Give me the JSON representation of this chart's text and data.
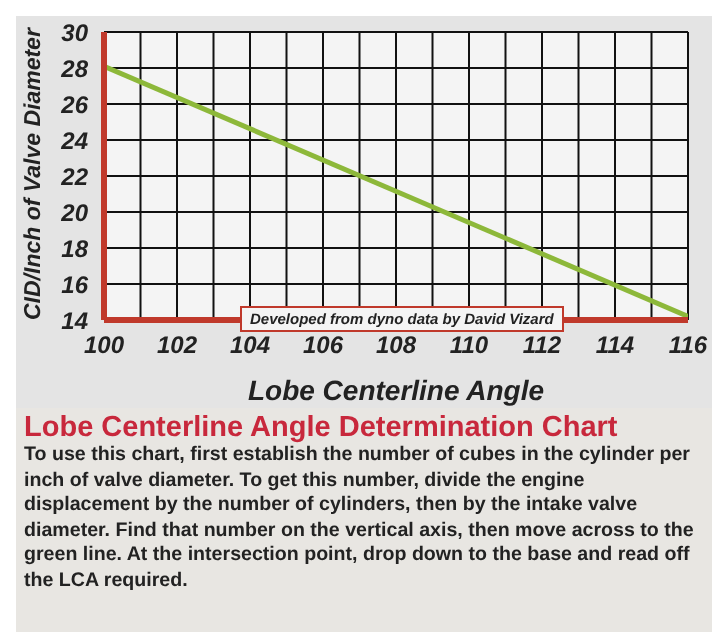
{
  "chart_data": {
    "type": "line",
    "title": "Lobe Centerline Angle Determination Chart",
    "xlabel": "Lobe Centerline Angle",
    "ylabel": "CID/Inch of Valve Diameter",
    "x": [
      100,
      116
    ],
    "series": [
      {
        "color": "#8db83a",
        "values": [
          28.1,
          14.2
        ]
      }
    ],
    "xlim": [
      100,
      116
    ],
    "xticks": [
      100,
      {
        "value": 101,
        "label": null
      },
      102,
      {
        "value": 103,
        "label": null
      },
      104,
      {
        "value": 105,
        "label": null
      },
      106,
      {
        "value": 107,
        "label": null
      },
      108,
      {
        "value": 109,
        "label": null
      },
      110,
      {
        "value": 111,
        "label": null
      },
      112,
      {
        "value": 113,
        "label": null
      },
      114,
      {
        "value": 115,
        "label": null
      },
      116
    ],
    "ylim": [
      14,
      30
    ],
    "yticks": [
      14,
      16,
      18,
      20,
      22,
      24,
      26,
      28,
      30
    ],
    "grid": true,
    "marker": "none",
    "line_style": "solid",
    "legend": false,
    "annotations": [
      "Developed from dyno data by David Vizard",
      "To use this chart, first establish the number of cubes in the cylinder per inch of valve diameter. To get this number, divide the engine displacement by the number of cylinders, then by the intake valve diameter. Find that number on the vertical axis, then move across to the green line. At the intersection point, drop down to the base and read off the LCA required."
    ]
  }
}
